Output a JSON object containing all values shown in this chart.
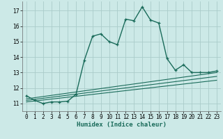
{
  "xlabel": "Humidex (Indice chaleur)",
  "background_color": "#cce9e7",
  "grid_color": "#aaccca",
  "line_color": "#1a6b5a",
  "xlim": [
    -0.5,
    23.5
  ],
  "ylim": [
    10.5,
    17.6
  ],
  "yticks": [
    11,
    12,
    13,
    14,
    15,
    16,
    17
  ],
  "xticks": [
    0,
    1,
    2,
    3,
    4,
    5,
    6,
    7,
    8,
    9,
    10,
    11,
    12,
    13,
    14,
    15,
    16,
    17,
    18,
    19,
    20,
    21,
    22,
    23
  ],
  "main_x": [
    0,
    1,
    2,
    3,
    4,
    5,
    6,
    7,
    8,
    9,
    10,
    11,
    12,
    13,
    14,
    15,
    16,
    17,
    18,
    19,
    20,
    21,
    22,
    23
  ],
  "main_y": [
    11.5,
    11.2,
    11.0,
    11.1,
    11.1,
    11.15,
    11.6,
    13.8,
    15.35,
    15.5,
    15.0,
    14.8,
    16.45,
    16.35,
    17.25,
    16.4,
    16.2,
    13.9,
    13.15,
    13.5,
    13.0,
    13.0,
    13.0,
    13.1
  ],
  "ref_lines": [
    {
      "x": [
        0,
        23
      ],
      "y": [
        11.1,
        12.5
      ]
    },
    {
      "x": [
        0,
        23
      ],
      "y": [
        11.2,
        12.75
      ]
    },
    {
      "x": [
        0,
        23
      ],
      "y": [
        11.3,
        13.0
      ]
    }
  ],
  "tick_fontsize": 5.5,
  "xlabel_fontsize": 6.5,
  "xlabel_fontweight": "bold"
}
